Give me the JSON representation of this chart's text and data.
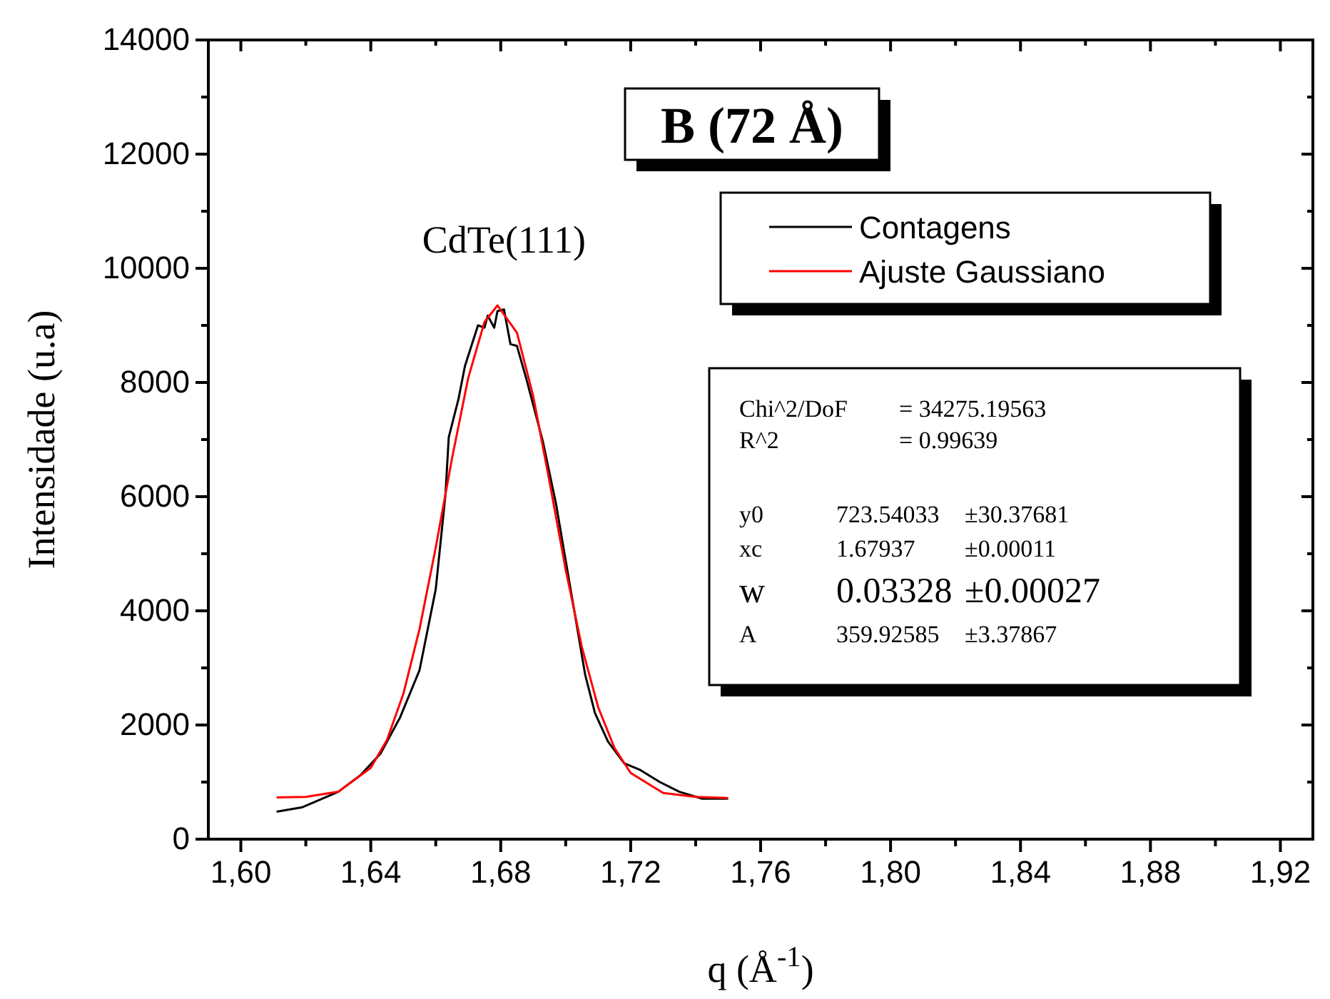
{
  "chart_data": {
    "type": "line",
    "title": "B (72 Å)",
    "xlabel": "q (Å$^{-1}$)",
    "ylabel": "Intensidade (u.a)",
    "xlim": [
      1.59,
      1.93
    ],
    "ylim": [
      0,
      14000
    ],
    "xticks": [
      {
        "value": 1.6,
        "label": "1,60"
      },
      {
        "value": 1.64,
        "label": "1,64"
      },
      {
        "value": 1.68,
        "label": "1,68"
      },
      {
        "value": 1.72,
        "label": "1,72"
      },
      {
        "value": 1.76,
        "label": "1,76"
      },
      {
        "value": 1.8,
        "label": "1,80"
      },
      {
        "value": 1.84,
        "label": "1,84"
      },
      {
        "value": 1.88,
        "label": "1,88"
      },
      {
        "value": 1.92,
        "label": "1,92"
      }
    ],
    "yticks": [
      0,
      2000,
      4000,
      6000,
      8000,
      10000,
      12000,
      14000
    ],
    "legend": "top right",
    "grid": false,
    "marker": "none",
    "line_style": "solid",
    "series": [
      {
        "name": "Contagens",
        "color": "#000000",
        "x": [
          1.611,
          1.619,
          1.63,
          1.637,
          1.643,
          1.649,
          1.655,
          1.66,
          1.663,
          1.664,
          1.667,
          1.669,
          1.673,
          1.675,
          1.676,
          1.678,
          1.679,
          1.681,
          1.683,
          1.685,
          1.688,
          1.693,
          1.697,
          1.7,
          1.703,
          1.706,
          1.709,
          1.713,
          1.718,
          1.723,
          1.729,
          1.735,
          1.742,
          1.75
        ],
        "values": [
          480,
          560,
          830,
          1130,
          1500,
          2130,
          2960,
          4380,
          6040,
          7040,
          7710,
          8290,
          9000,
          8960,
          9170,
          8960,
          9250,
          9280,
          8670,
          8640,
          8040,
          6960,
          5880,
          4880,
          3880,
          2880,
          2210,
          1710,
          1330,
          1210,
          1000,
          830,
          710,
          710
        ]
      },
      {
        "name": "Ajuste Gaussiano",
        "color": "#ff0000",
        "x": [
          1.611,
          1.62,
          1.63,
          1.64,
          1.645,
          1.65,
          1.655,
          1.66,
          1.665,
          1.67,
          1.675,
          1.679,
          1.685,
          1.69,
          1.695,
          1.7,
          1.705,
          1.71,
          1.715,
          1.72,
          1.73,
          1.74,
          1.75
        ],
        "values": [
          730,
          740,
          830,
          1250,
          1740,
          2540,
          3680,
          5110,
          6670,
          8080,
          9060,
          9350,
          8870,
          7760,
          6270,
          4720,
          3360,
          2310,
          1600,
          1160,
          810,
          740,
          720
        ]
      }
    ],
    "annotations": [
      "CdTe(111)",
      "Chi^2/DoF",
      "= 34275.19563",
      "R^2",
      "=  0.99639",
      "y0",
      "723.54033",
      "±30.37681",
      "xc",
      "1.67937",
      "±0.00011",
      "w",
      "0.03328",
      "±0.00027",
      "A",
      "359.92585",
      "±3.37867"
    ]
  }
}
